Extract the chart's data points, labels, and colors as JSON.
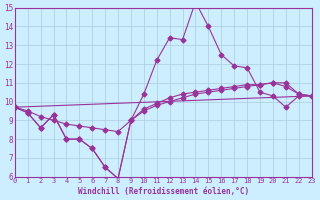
{
  "xlabel": "Windchill (Refroidissement éolien,°C)",
  "bg_color": "#cceeff",
  "line_color": "#993399",
  "grid_color": "#aaccdd",
  "xlim": [
    0,
    23
  ],
  "ylim": [
    6,
    15
  ],
  "yticks": [
    6,
    7,
    8,
    9,
    10,
    11,
    12,
    13,
    14,
    15
  ],
  "xticks": [
    0,
    1,
    2,
    3,
    4,
    5,
    6,
    7,
    8,
    9,
    10,
    11,
    12,
    13,
    14,
    15,
    16,
    17,
    18,
    19,
    20,
    21,
    22,
    23
  ],
  "line1_x": [
    0,
    1,
    2,
    3,
    4,
    5,
    6,
    7,
    8,
    9,
    10,
    11,
    12,
    13,
    14,
    15,
    16,
    17,
    18,
    19,
    20,
    21,
    22,
    23
  ],
  "line1_y": [
    9.7,
    9.4,
    8.6,
    9.3,
    8.0,
    8.0,
    7.5,
    6.5,
    5.9,
    9.0,
    10.4,
    12.2,
    13.4,
    13.3,
    15.3,
    14.0,
    12.5,
    11.9,
    11.8,
    10.5,
    10.3,
    9.7,
    10.3,
    10.3
  ],
  "line2_x": [
    0,
    1,
    2,
    3,
    4,
    5,
    6,
    7,
    8,
    9,
    10,
    11,
    12,
    13,
    14,
    15,
    16,
    17,
    18,
    19,
    20,
    21,
    22,
    23
  ],
  "line2_y": [
    9.7,
    9.4,
    8.6,
    9.3,
    8.0,
    8.0,
    7.5,
    6.5,
    5.9,
    9.0,
    9.6,
    9.9,
    10.2,
    10.4,
    10.5,
    10.6,
    10.7,
    10.8,
    10.9,
    10.9,
    11.0,
    11.0,
    10.4,
    10.3
  ],
  "line3_x": [
    0,
    23
  ],
  "line3_y": [
    9.7,
    10.3
  ],
  "line4_x": [
    0,
    1,
    2,
    3,
    4,
    5,
    6,
    7,
    8,
    9,
    10,
    11,
    12,
    13,
    14,
    15,
    16,
    17,
    18,
    19,
    20,
    21,
    22,
    23
  ],
  "line4_y": [
    9.7,
    9.5,
    9.2,
    9.0,
    8.8,
    8.7,
    8.6,
    8.5,
    8.4,
    9.0,
    9.5,
    9.8,
    10.0,
    10.2,
    10.4,
    10.5,
    10.6,
    10.7,
    10.8,
    10.9,
    11.0,
    10.8,
    10.4,
    10.3
  ]
}
